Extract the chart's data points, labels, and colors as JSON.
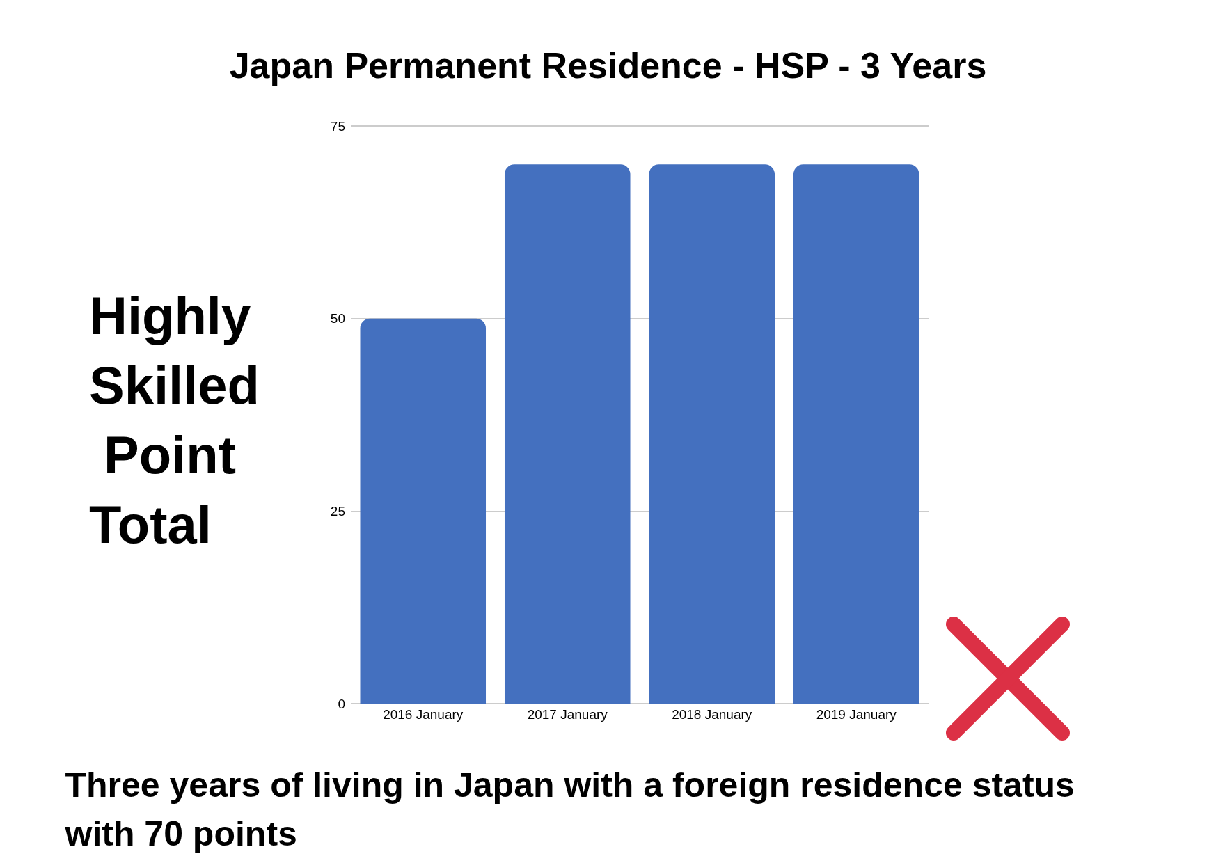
{
  "chart_data": {
    "type": "bar",
    "title": "Japan Permanent Residence - HSP - 3 Years",
    "ylabel": "Highly Skilled Point Total",
    "categories": [
      "2016 January",
      "2017 January",
      "2018 January",
      "2019 January"
    ],
    "values": [
      50,
      70,
      70,
      70
    ],
    "color": "#4470bf",
    "ylim": [
      0,
      75
    ],
    "yticks": [
      0,
      25,
      50,
      75
    ],
    "grid": "y",
    "annotations": [
      "Three years of living in Japan with a foreign residence status  with 70 points"
    ]
  }
}
